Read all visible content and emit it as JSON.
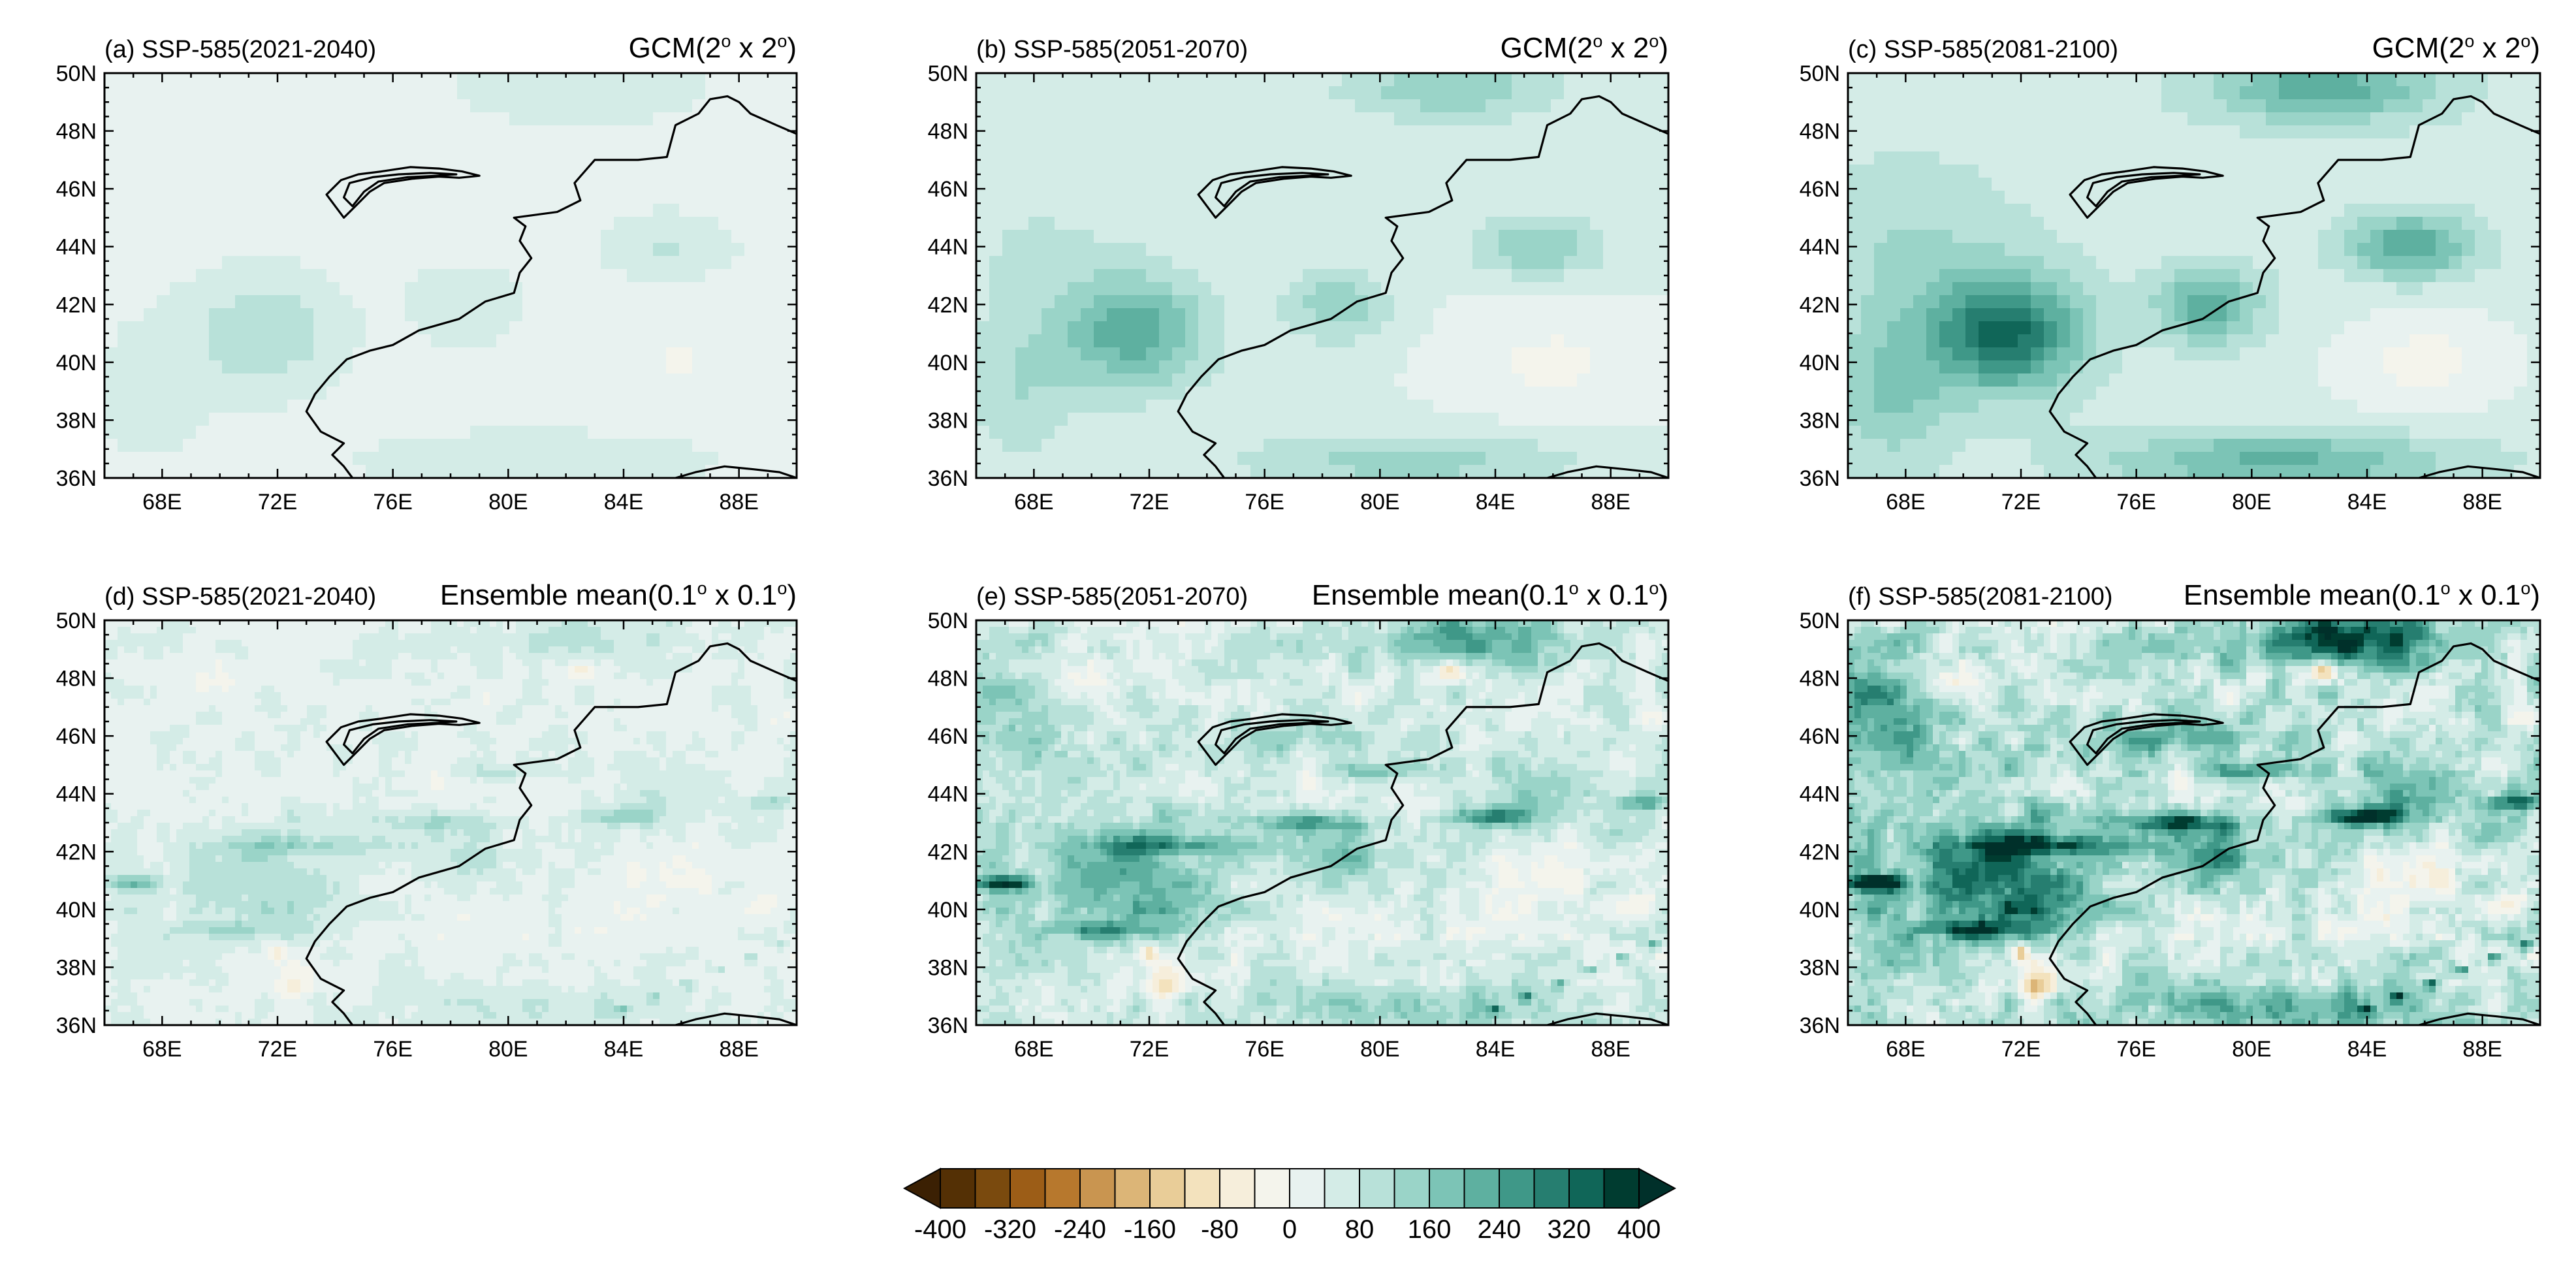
{
  "chart_data": {
    "type": "heatmap",
    "panels": [
      {
        "id": "a",
        "title_left": "(a) SSP-585(2021-2040)",
        "title_right_prefix": "GCM(2",
        "title_right_suffix": " x 2",
        "title_right_end": ")",
        "degree_mark": "o",
        "resolution": "coarse",
        "intensity": 1
      },
      {
        "id": "b",
        "title_left": "(b) SSP-585(2051-2070)",
        "title_right_prefix": "GCM(2",
        "title_right_suffix": " x 2",
        "title_right_end": ")",
        "degree_mark": "o",
        "resolution": "coarse",
        "intensity": 2
      },
      {
        "id": "c",
        "title_left": "(c) SSP-585(2081-2100)",
        "title_right_prefix": "GCM(2",
        "title_right_suffix": " x 2",
        "title_right_end": ")",
        "degree_mark": "o",
        "resolution": "coarse",
        "intensity": 3
      },
      {
        "id": "d",
        "title_left": "(d) SSP-585(2021-2040)",
        "title_right_prefix": "Ensemble mean(0.1",
        "title_right_suffix": " x 0.1",
        "title_right_end": ")",
        "degree_mark": "o",
        "resolution": "fine",
        "intensity": 1
      },
      {
        "id": "e",
        "title_left": "(e) SSP-585(2051-2070)",
        "title_right_prefix": "Ensemble mean(0.1",
        "title_right_suffix": " x 0.1",
        "title_right_end": ")",
        "degree_mark": "o",
        "resolution": "fine",
        "intensity": 2
      },
      {
        "id": "f",
        "title_left": "(f) SSP-585(2081-2100)",
        "title_right_prefix": "Ensemble mean(0.1",
        "title_right_suffix": " x 0.1",
        "title_right_end": ")",
        "degree_mark": "o",
        "resolution": "fine",
        "intensity": 3
      }
    ],
    "lon_range": [
      66,
      90
    ],
    "lat_range": [
      36,
      50
    ],
    "x_ticks": [
      68,
      72,
      76,
      80,
      84,
      88
    ],
    "x_tick_labels": [
      "68E",
      "72E",
      "76E",
      "80E",
      "84E",
      "88E"
    ],
    "y_ticks": [
      36,
      38,
      40,
      42,
      44,
      46,
      48,
      50
    ],
    "y_tick_labels": [
      "36N",
      "38N",
      "40N",
      "42N",
      "44N",
      "46N",
      "48N",
      "50N"
    ],
    "colorbar": {
      "levels": [
        -400,
        -360,
        -320,
        -280,
        -240,
        -200,
        -160,
        -120,
        -80,
        -40,
        0,
        40,
        80,
        120,
        160,
        200,
        240,
        280,
        320,
        360,
        400
      ],
      "labels": [
        "-400",
        "-320",
        "-240",
        "-160",
        "-80",
        "0",
        "80",
        "160",
        "240",
        "320",
        "400"
      ],
      "label_values": [
        -400,
        -320,
        -240,
        -160,
        -80,
        0,
        80,
        160,
        240,
        320,
        400
      ],
      "colors": [
        "#543005",
        "#7a4a0e",
        "#9c5d17",
        "#b7782d",
        "#c99550",
        "#dcb577",
        "#e9cd98",
        "#f3e2bd",
        "#f6eedb",
        "#f4f4ec",
        "#e8f2f0",
        "#d4ece7",
        "#b8e1d9",
        "#9ad4c8",
        "#7cc4b6",
        "#5eb0a0",
        "#3f9888",
        "#267e70",
        "#106658",
        "#003c30"
      ],
      "under_color": "#3b2003",
      "over_color": "#00302a"
    }
  }
}
